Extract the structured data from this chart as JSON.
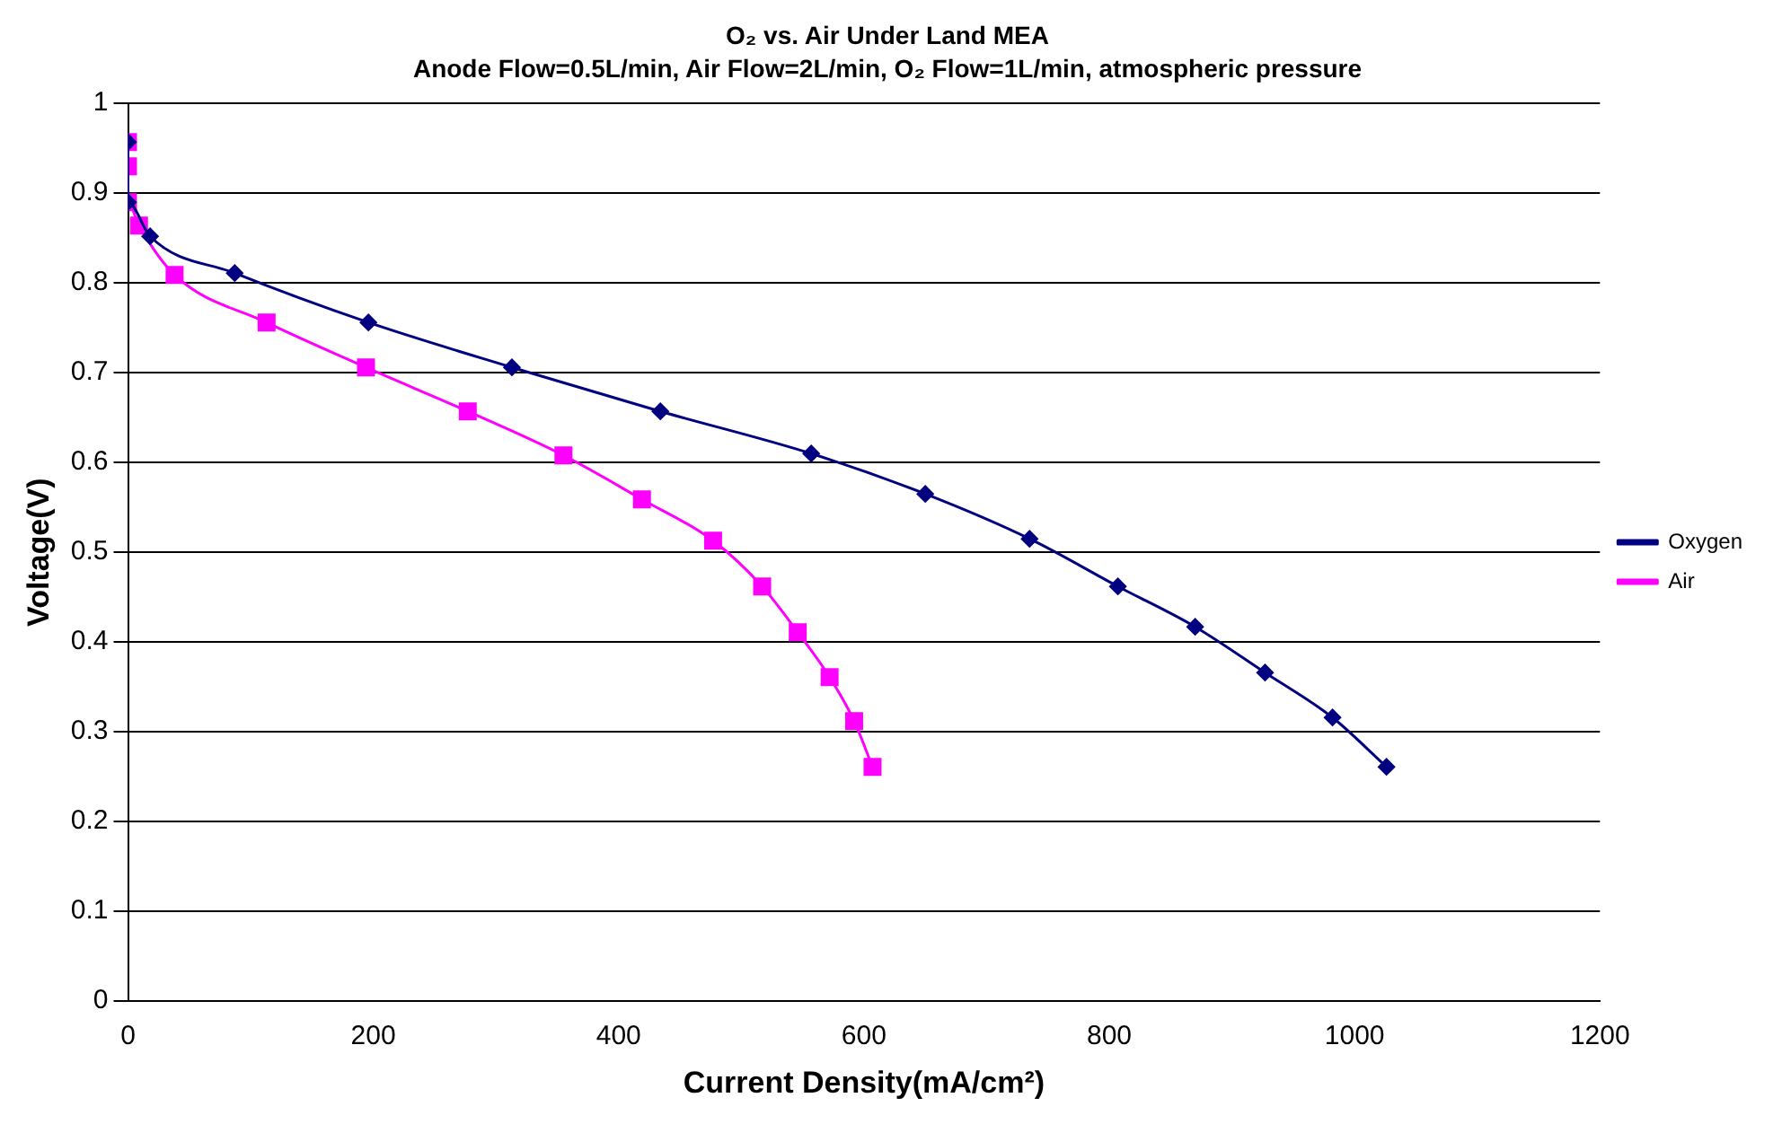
{
  "chart_data": {
    "type": "line",
    "title": "O₂ vs. Air Under Land MEA",
    "subtitle": "Anode Flow=0.5L/min, Air Flow=2L/min, O₂ Flow=1L/min, atmospheric pressure",
    "xlabel": "Current Density(mA/cm²)",
    "ylabel": "Voltage(V)",
    "xlim": [
      0,
      1200
    ],
    "xticks": [
      0,
      200,
      400,
      600,
      800,
      1000,
      1200
    ],
    "ylim": [
      0,
      1
    ],
    "yticks": [
      0,
      0.1,
      0.2,
      0.3,
      0.4,
      0.5,
      0.6,
      0.7,
      0.8,
      0.9,
      1
    ],
    "grid": "y",
    "legend": "right",
    "series": [
      {
        "name": "Oxygen",
        "color": "#000080",
        "marker": "diamond",
        "x": [
          0,
          0,
          18,
          87,
          196,
          313,
          434,
          557,
          650,
          735,
          807,
          870,
          927,
          982,
          1026
        ],
        "values": [
          0.957,
          0.89,
          0.852,
          0.811,
          0.756,
          0.706,
          0.657,
          0.61,
          0.565,
          0.515,
          0.462,
          0.417,
          0.366,
          0.316,
          0.261
        ]
      },
      {
        "name": "Air",
        "color": "#ff00ff",
        "marker": "square",
        "x": [
          0,
          0,
          0,
          9,
          38,
          113,
          194,
          277,
          355,
          419,
          477,
          517,
          546,
          572,
          592,
          607
        ],
        "values": [
          0.957,
          0.93,
          0.89,
          0.864,
          0.809,
          0.756,
          0.706,
          0.657,
          0.608,
          0.559,
          0.513,
          0.462,
          0.411,
          0.361,
          0.312,
          0.261
        ]
      }
    ]
  }
}
